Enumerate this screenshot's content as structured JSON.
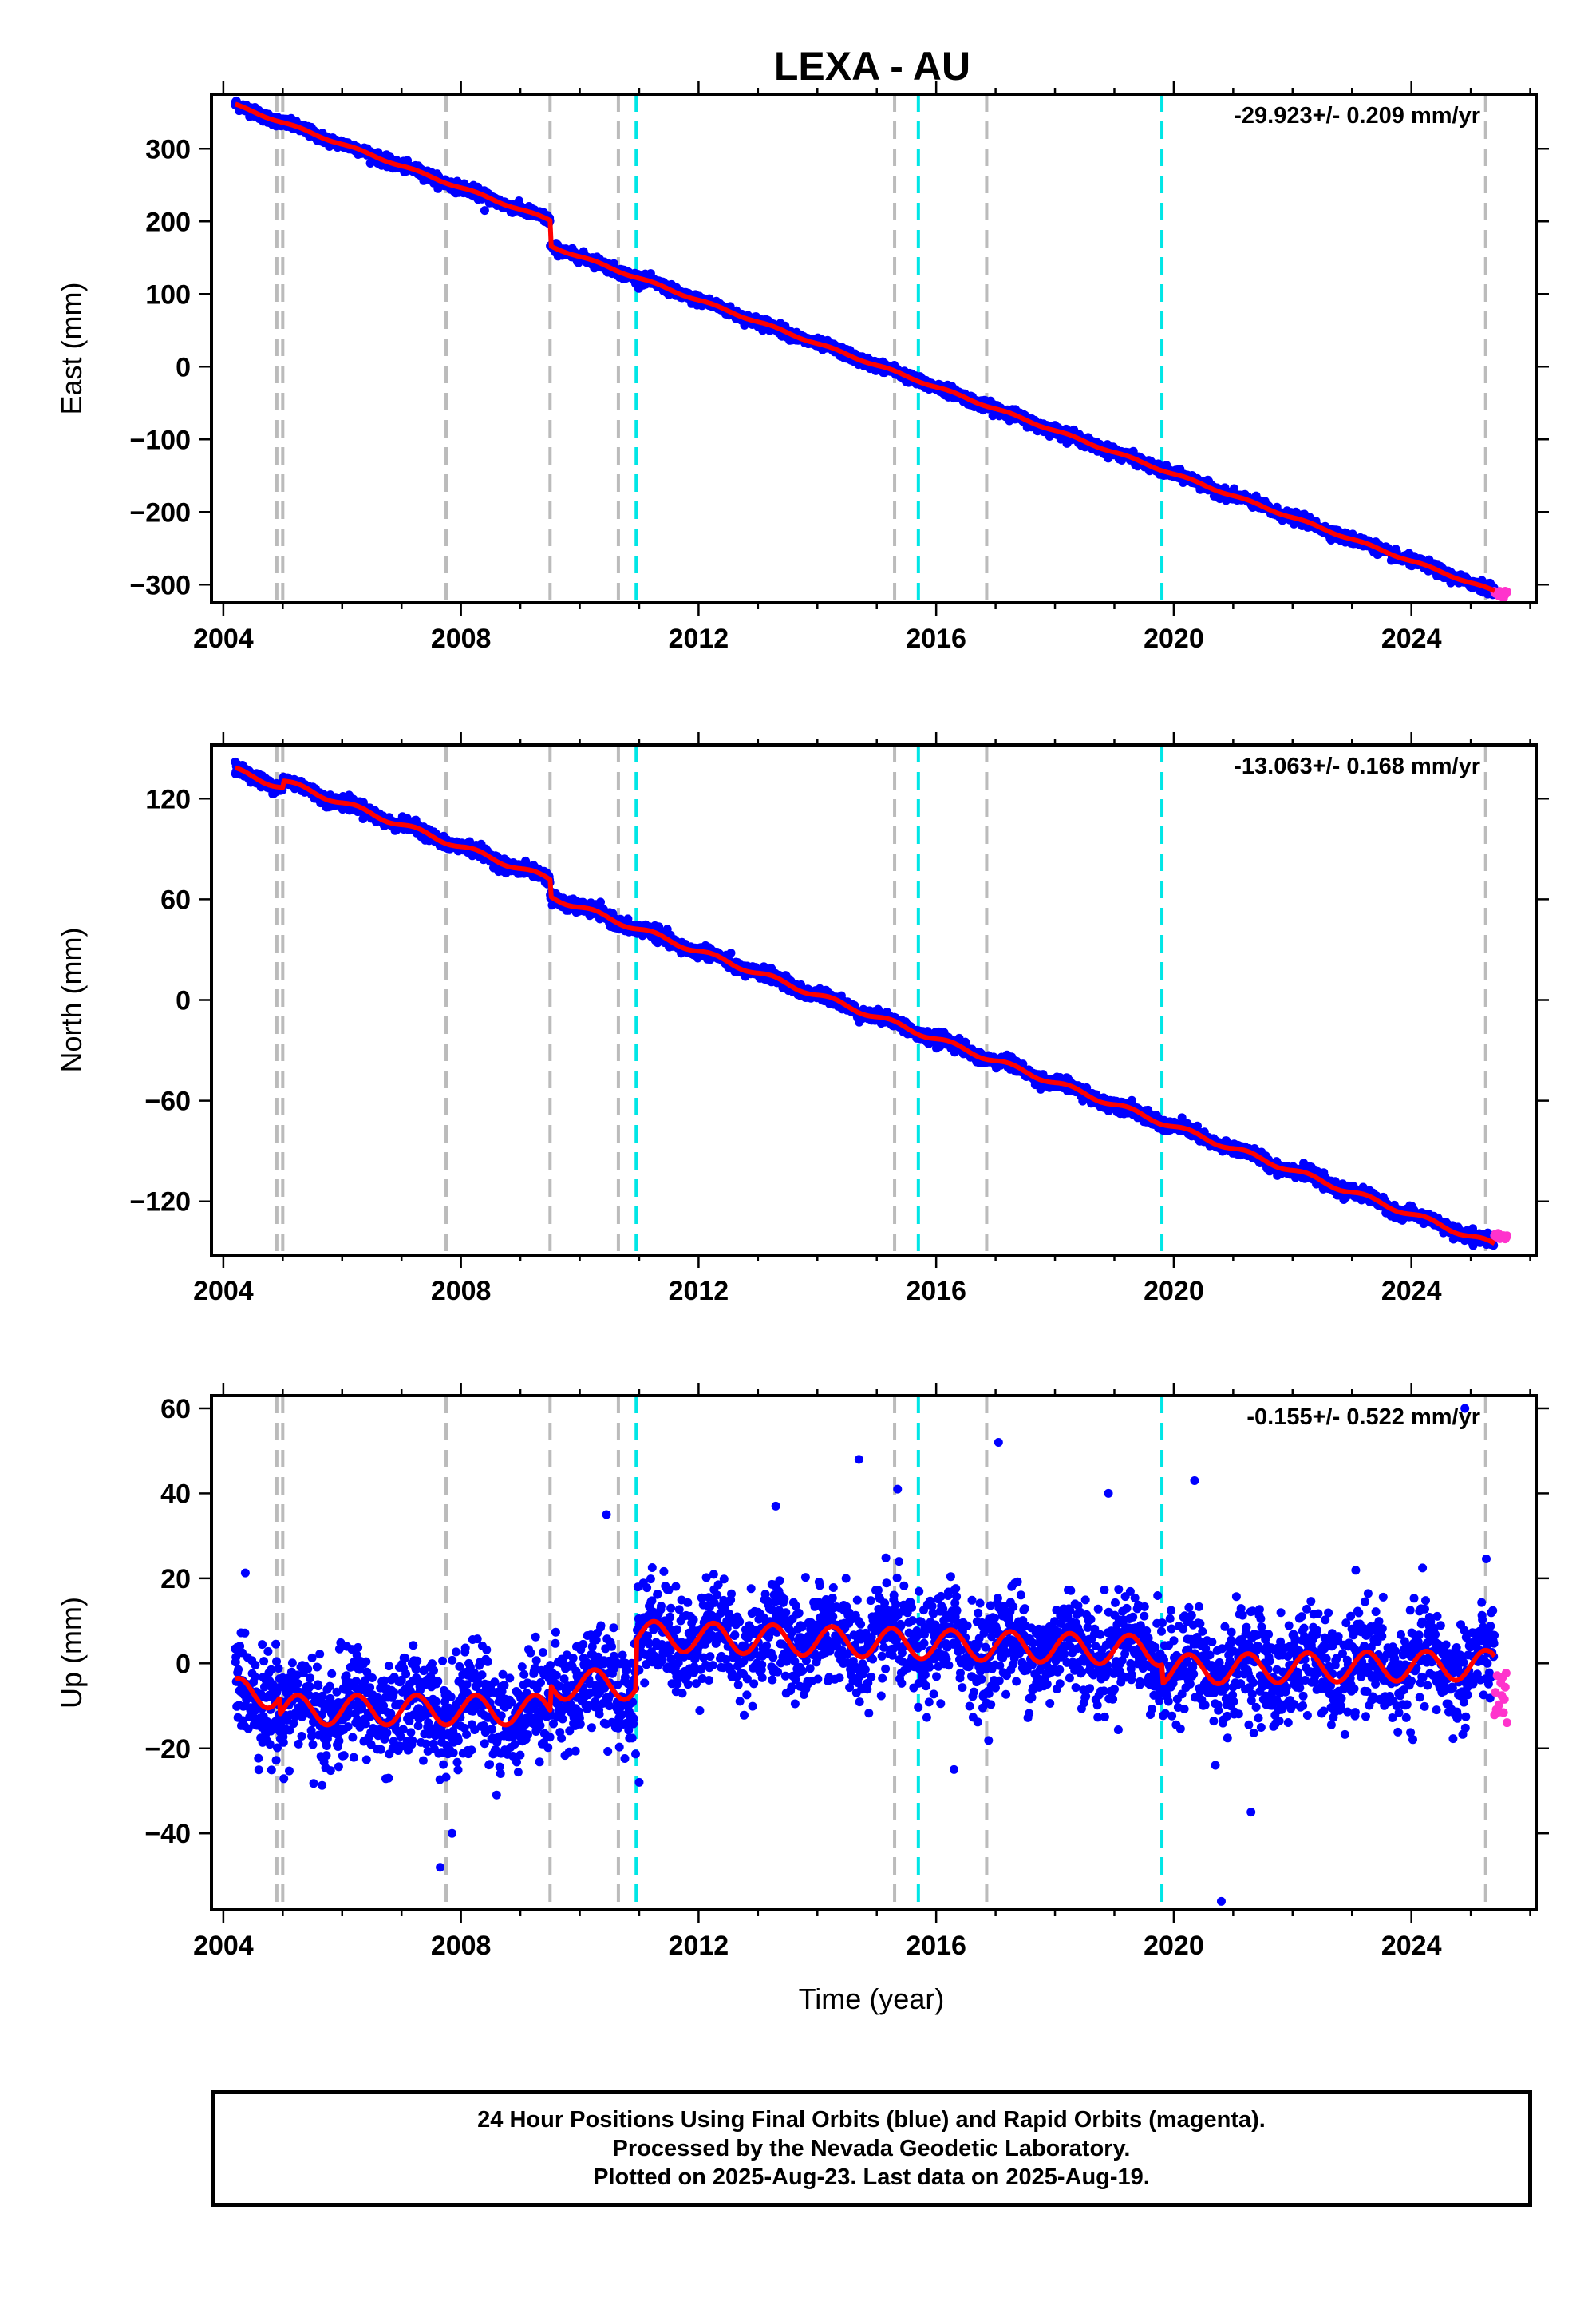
{
  "title": "LEXA - AU",
  "colors": {
    "final_orbits": "#0000ff",
    "rapid_orbits": "#ff33cc",
    "model": "#ff0000",
    "equipment_change": "#bbbbbb",
    "earthquake": "#00e6e6"
  },
  "x_axis": {
    "xlabel": "Time (year)",
    "xlim": [
      2003.8,
      2026.1
    ],
    "ticks": [
      2004,
      2008,
      2012,
      2016,
      2020,
      2024
    ],
    "tick_labels": [
      "2004",
      "2008",
      "2012",
      "2016",
      "2020",
      "2024"
    ]
  },
  "events": {
    "equipment_changes": [
      2004.9,
      2005.0,
      2007.75,
      2009.5,
      2010.65,
      2015.3,
      2016.85,
      2025.25
    ],
    "earthquakes": [
      2010.95,
      2015.7,
      2019.8
    ]
  },
  "chart_data": [
    {
      "type": "scatter",
      "name": "east",
      "ylabel": "East (mm)",
      "rate_text": "-29.923+/- 0.209 mm/yr",
      "ylim": [
        -325,
        375
      ],
      "yticks": [
        -300,
        -200,
        -100,
        0,
        100,
        200,
        300
      ],
      "ytick_labels": [
        "−300",
        "−200",
        "−100",
        "0",
        "100",
        "200",
        "300"
      ],
      "start": 2004.2,
      "end": 2025.4,
      "start_value": 360,
      "rate": -29.923,
      "offsets": [
        {
          "t": 2009.5,
          "dy": -35
        }
      ],
      "seasonal_amp": 1.5,
      "noise": 3.5,
      "outliers": [
        {
          "x": 2008.4,
          "y": 215
        },
        {
          "x": 2005.4,
          "y": 330
        }
      ]
    },
    {
      "type": "scatter",
      "name": "north",
      "ylabel": "North (mm)",
      "rate_text": "-13.063+/- 0.168 mm/yr",
      "ylim": [
        -152,
        152
      ],
      "yticks": [
        -120,
        -60,
        0,
        60,
        120
      ],
      "ytick_labels": [
        "−120",
        "−60",
        "0",
        "60",
        "120"
      ],
      "start": 2004.2,
      "end": 2025.4,
      "start_value": 137,
      "rate": -13.063,
      "offsets": [
        {
          "t": 2009.5,
          "dy": -10
        },
        {
          "t": 2005.0,
          "dy": 4
        }
      ],
      "seasonal_amp": 1.5,
      "noise": 1.8,
      "outliers": []
    },
    {
      "type": "scatter",
      "name": "up",
      "ylabel": "Up (mm)",
      "rate_text": "-0.155+/- 0.522 mm/yr",
      "ylim": [
        -58,
        63
      ],
      "yticks": [
        -40,
        -20,
        0,
        20,
        40,
        60
      ],
      "ytick_labels": [
        "−40",
        "−20",
        "0",
        "20",
        "40",
        "60"
      ],
      "model_segments": [
        {
          "start": 2004.2,
          "end": 2004.95,
          "base": -7
        },
        {
          "start": 2004.95,
          "end": 2009.5,
          "base": -11
        },
        {
          "start": 2009.5,
          "end": 2010.95,
          "base": -5
        },
        {
          "start": 2010.95,
          "end": 2019.8,
          "base": 6.5,
          "slope": -0.4
        },
        {
          "start": 2019.8,
          "end": 2025.4,
          "base": -1.5,
          "slope": 0.2
        }
      ],
      "seasonal_amp": 3.5,
      "noise": 6,
      "outliers": [
        {
          "x": 2007.65,
          "y": -48
        },
        {
          "x": 2007.85,
          "y": -40
        },
        {
          "x": 2010.45,
          "y": 35
        },
        {
          "x": 2014.7,
          "y": 48
        },
        {
          "x": 2015.35,
          "y": 41
        },
        {
          "x": 2017.05,
          "y": 52
        },
        {
          "x": 2020.35,
          "y": 43
        },
        {
          "x": 2020.8,
          "y": -56
        },
        {
          "x": 2021.3,
          "y": -35
        },
        {
          "x": 2024.9,
          "y": 60
        },
        {
          "x": 2013.3,
          "y": 37
        },
        {
          "x": 2018.9,
          "y": 40
        },
        {
          "x": 2016.3,
          "y": -25
        },
        {
          "x": 2011.0,
          "y": -28
        },
        {
          "x": 2008.6,
          "y": -31
        },
        {
          "x": 2020.7,
          "y": -24
        }
      ]
    }
  ],
  "rapid_tail": {
    "start": 2025.4,
    "end": 2025.62,
    "east": -312,
    "north": -141,
    "up": -8
  },
  "footer": {
    "line1": "24 Hour Positions Using Final Orbits (blue) and Rapid Orbits (magenta).",
    "line2": "Processed by the Nevada Geodetic Laboratory.",
    "line3": "Plotted on 2025-Aug-23. Last data on 2025-Aug-19."
  }
}
